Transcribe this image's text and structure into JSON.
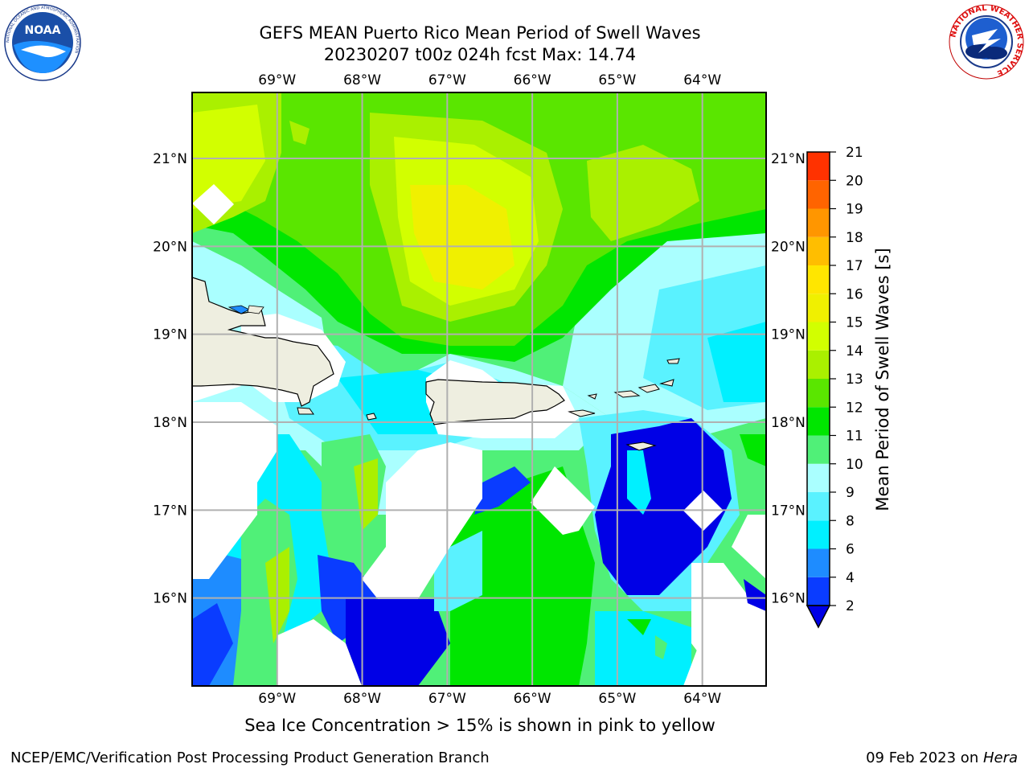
{
  "title": {
    "line1": "GEFS MEAN Puerto Rico Mean Period of Swell Waves",
    "line2": "20230207 t00z 024h fcst   Max: 14.74"
  },
  "map": {
    "lon_ticks": [
      "69°W",
      "68°W",
      "67°W",
      "66°W",
      "65°W",
      "64°W"
    ],
    "lat_ticks": [
      "21°N",
      "20°N",
      "19°N",
      "18°N",
      "17°N",
      "16°N"
    ],
    "extent": {
      "lon": [
        -70.0,
        -63.25
      ],
      "lat": [
        15.0,
        21.75
      ]
    },
    "grid": true
  },
  "colorbar": {
    "label": "Mean Period of Swell Waves [s]",
    "ticks": [
      "2",
      "4",
      "6",
      "8",
      "9",
      "10",
      "11",
      "12",
      "13",
      "14",
      "15",
      "16",
      "17",
      "18",
      "19",
      "20",
      "21"
    ],
    "colors": [
      "#0a3cff",
      "#1e8cff",
      "#00f0ff",
      "#5af2ff",
      "#aaffff",
      "#50f078",
      "#00e600",
      "#5ae600",
      "#aaf000",
      "#d2ff00",
      "#f0f000",
      "#ffe600",
      "#ffbe00",
      "#ff9600",
      "#ff6400",
      "#ff3200"
    ],
    "under_color": "#0000e6",
    "top_color": "#ff0000"
  },
  "note": "Sea Ice Concentration > 15% is shown in pink to yellow",
  "footer": {
    "left": "NCEP/EMC/Verification Post Processing Product Generation Branch",
    "right_date": "09 Feb 2023 on ",
    "right_host": "Hera"
  },
  "logos": {
    "noaa_text": "NOAA",
    "noaa_ring_text": "NATIONAL OCEANIC AND ATMOSPHERIC ADMINISTRATION",
    "nws_ring_text": "NATIONAL WEATHER SERVICE"
  }
}
